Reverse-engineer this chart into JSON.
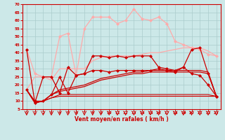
{
  "xlabel": "Vent moyen/en rafales ( km/h )",
  "bg_color": "#cce8e8",
  "grid_color": "#aacccc",
  "xlim": [
    -0.5,
    23.5
  ],
  "ylim": [
    5,
    70
  ],
  "yticks": [
    5,
    10,
    15,
    20,
    25,
    30,
    35,
    40,
    45,
    50,
    55,
    60,
    65,
    70
  ],
  "xticks": [
    0,
    1,
    2,
    3,
    4,
    5,
    6,
    7,
    8,
    9,
    10,
    11,
    12,
    13,
    14,
    15,
    16,
    17,
    18,
    19,
    20,
    21,
    22,
    23
  ],
  "series": [
    {
      "x": [
        0,
        1,
        2,
        3,
        4,
        5,
        6,
        7,
        8,
        9,
        10,
        11,
        12,
        13,
        14,
        15,
        16,
        17,
        18,
        19,
        20,
        21,
        22,
        23
      ],
      "y": [
        42,
        27,
        25,
        25,
        50,
        52,
        26,
        55,
        62,
        62,
        62,
        58,
        60,
        67,
        61,
        60,
        62,
        58,
        47,
        45,
        43,
        42,
        39,
        38
      ],
      "color": "#ffaaaa",
      "marker": "D",
      "markersize": 2,
      "linewidth": 0.9,
      "zorder": 3
    },
    {
      "x": [
        0,
        1,
        2,
        3,
        4,
        5,
        6,
        7,
        8,
        9,
        10,
        11,
        12,
        13,
        14,
        15,
        16,
        17,
        18,
        19,
        20,
        21,
        22,
        23
      ],
      "y": [
        17,
        25,
        25,
        23,
        30,
        30,
        30,
        30,
        35,
        37,
        38,
        38,
        38,
        38,
        39,
        40,
        40,
        41,
        42,
        43,
        43,
        43,
        41,
        38
      ],
      "color": "#ffaaaa",
      "marker": null,
      "markersize": 0,
      "linewidth": 0.9,
      "zorder": 3
    },
    {
      "x": [
        0,
        1,
        2,
        3,
        4,
        5,
        6,
        7,
        8,
        9,
        10,
        11,
        12,
        13,
        14,
        15,
        16,
        17,
        18,
        19,
        20,
        21,
        22,
        23
      ],
      "y": [
        42,
        9,
        25,
        25,
        15,
        31,
        26,
        27,
        38,
        38,
        37,
        38,
        37,
        38,
        38,
        38,
        31,
        30,
        29,
        31,
        42,
        43,
        27,
        13
      ],
      "color": "#cc0000",
      "marker": "D",
      "markersize": 2,
      "linewidth": 0.9,
      "zorder": 5
    },
    {
      "x": [
        0,
        1,
        2,
        3,
        4,
        5,
        6,
        7,
        8,
        9,
        10,
        11,
        12,
        13,
        14,
        15,
        16,
        17,
        18,
        19,
        20,
        21,
        22,
        23
      ],
      "y": [
        17,
        10,
        10,
        14,
        25,
        15,
        26,
        27,
        29,
        29,
        28,
        29,
        29,
        29,
        29,
        29,
        30,
        29,
        28,
        31,
        27,
        26,
        20,
        13
      ],
      "color": "#cc0000",
      "marker": "D",
      "markersize": 2,
      "linewidth": 0.9,
      "zorder": 5
    },
    {
      "x": [
        0,
        1,
        2,
        3,
        4,
        5,
        6,
        7,
        8,
        9,
        10,
        11,
        12,
        13,
        14,
        15,
        16,
        17,
        18,
        19,
        20,
        21,
        22,
        23
      ],
      "y": [
        17,
        9,
        10,
        12,
        13,
        13,
        13,
        13,
        13,
        13,
        13,
        13,
        13,
        13,
        13,
        13,
        13,
        13,
        13,
        13,
        13,
        13,
        13,
        13
      ],
      "color": "#cc0000",
      "marker": null,
      "markersize": 0,
      "linewidth": 0.8,
      "zorder": 4
    },
    {
      "x": [
        0,
        1,
        2,
        3,
        4,
        5,
        6,
        7,
        8,
        9,
        10,
        11,
        12,
        13,
        14,
        15,
        16,
        17,
        18,
        19,
        20,
        21,
        22,
        23
      ],
      "y": [
        17,
        9,
        10,
        12,
        14,
        14,
        14,
        14,
        14,
        14,
        14,
        14,
        14,
        14,
        14,
        14,
        14,
        14,
        14,
        14,
        14,
        14,
        14,
        13
      ],
      "color": "#cc0000",
      "marker": null,
      "markersize": 0,
      "linewidth": 0.8,
      "zorder": 4
    },
    {
      "x": [
        0,
        1,
        2,
        3,
        4,
        5,
        6,
        7,
        8,
        9,
        10,
        11,
        12,
        13,
        14,
        15,
        16,
        17,
        18,
        19,
        20,
        21,
        22,
        23
      ],
      "y": [
        17,
        9,
        10,
        14,
        16,
        17,
        18,
        19,
        21,
        23,
        24,
        25,
        26,
        27,
        27,
        28,
        28,
        28,
        28,
        28,
        28,
        28,
        27,
        13
      ],
      "color": "#cc0000",
      "marker": null,
      "markersize": 0,
      "linewidth": 0.9,
      "zorder": 4
    },
    {
      "x": [
        0,
        1,
        2,
        3,
        4,
        5,
        6,
        7,
        8,
        9,
        10,
        11,
        12,
        13,
        14,
        15,
        16,
        17,
        18,
        19,
        20,
        21,
        22,
        23
      ],
      "y": [
        17,
        9,
        10,
        14,
        17,
        18,
        19,
        20,
        22,
        24,
        25,
        26,
        27,
        28,
        28,
        29,
        29,
        29,
        29,
        29,
        29,
        29,
        28,
        13
      ],
      "color": "#cc0000",
      "marker": null,
      "markersize": 0,
      "linewidth": 0.9,
      "zorder": 4
    }
  ]
}
